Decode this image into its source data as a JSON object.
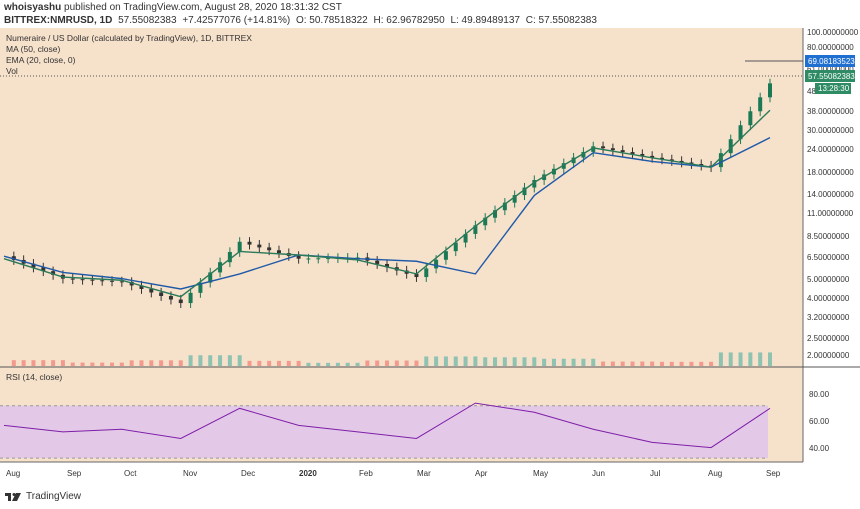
{
  "header": {
    "author": "whoisyashu",
    "published": "published on TradingView.com, August 28, 2020 18:31:32 CST",
    "symbol": "BITTREX:NMRUSD, 1D",
    "last": "57.55082383",
    "change": "+7.42577076 (+14.81%)",
    "open": "O: 50.78518322",
    "high": "H: 62.96782950",
    "low": "L: 49.89489137",
    "close": "C: 57.55082383"
  },
  "legend": {
    "title": "Numeraire / US Dollar (calculated by TradingView), 1D, BITTREX",
    "ma": "MA (50, close)",
    "ema": "EMA (20, close, 0)",
    "vol": "Vol",
    "rsi": "RSI (14, close)"
  },
  "price_axis_labels": [
    "100.00000000",
    "80.00000000",
    "61.00000000",
    "48.",
    "38.00000000",
    "30.00000000",
    "24.00000000",
    "18.00000000",
    "14.00000000",
    "11.00000000",
    "8.50000000",
    "6.50000000",
    "5.00000000",
    "4.00000000",
    "3.20000000",
    "2.50000000",
    "2.00000000"
  ],
  "rsi_axis_labels": [
    "80.00",
    "60.00",
    "40.00"
  ],
  "price_tags": {
    "high": "69.08183523",
    "last": "57.55082383",
    "countdown": "13:28:30"
  },
  "months": [
    "Aug",
    "Sep",
    "Oct",
    "Nov",
    "Dec",
    "2020",
    "Feb",
    "Mar",
    "Apr",
    "May",
    "Jun",
    "Jul",
    "Aug",
    "Sep"
  ],
  "footer": {
    "brand": "TradingView"
  },
  "colors": {
    "background": "#f6e1cb",
    "up": "#26a69a",
    "down": "#ef5350",
    "candle_up": "#1b7a55",
    "candle_down": "#333333",
    "ma": "#1f5aa8",
    "ema": "#2b7a5a",
    "rsi": "#7e1fa8",
    "rsi_band": "#e3c8e8"
  },
  "chart_data": {
    "type": "line",
    "title": "Numeraire / US Dollar (calculated by TradingView), 1D, BITTREX",
    "x": [
      "Aug",
      "Sep",
      "Oct",
      "Nov",
      "Dec",
      "2020",
      "Feb",
      "Mar",
      "Apr",
      "May",
      "Jun",
      "Jul",
      "Aug",
      "Sep"
    ],
    "y_scale": "log",
    "ylim": [
      1.8,
      110
    ],
    "series": [
      {
        "name": "NMRUSD close",
        "values": [
          6.5,
          4.9,
          4.7,
          3.6,
          7.8,
          6.3,
          6.4,
          5.0,
          9.6,
          17.0,
          26.0,
          22.5,
          20.0,
          57.55
        ]
      },
      {
        "name": "MA (50, close)",
        "values": [
          6.5,
          5.3,
          4.9,
          4.3,
          5.2,
          6.6,
          6.3,
          6.1,
          5.2,
          14.0,
          24.0,
          21.5,
          20.0,
          29.0
        ]
      },
      {
        "name": "EMA (20, close, 0)",
        "values": [
          6.3,
          5.0,
          4.8,
          3.9,
          6.9,
          6.6,
          6.2,
          5.2,
          9.5,
          16.5,
          25.5,
          22.5,
          20.0,
          41.0
        ]
      }
    ],
    "rsi": {
      "name": "RSI (14, close)",
      "ylim": [
        27,
        95
      ],
      "levels": [
        70,
        30
      ],
      "values": [
        55,
        50,
        52,
        45,
        68,
        55,
        50,
        45,
        72,
        65,
        52,
        42,
        38,
        68
      ]
    },
    "grid": false,
    "legend_position": "top-left"
  }
}
